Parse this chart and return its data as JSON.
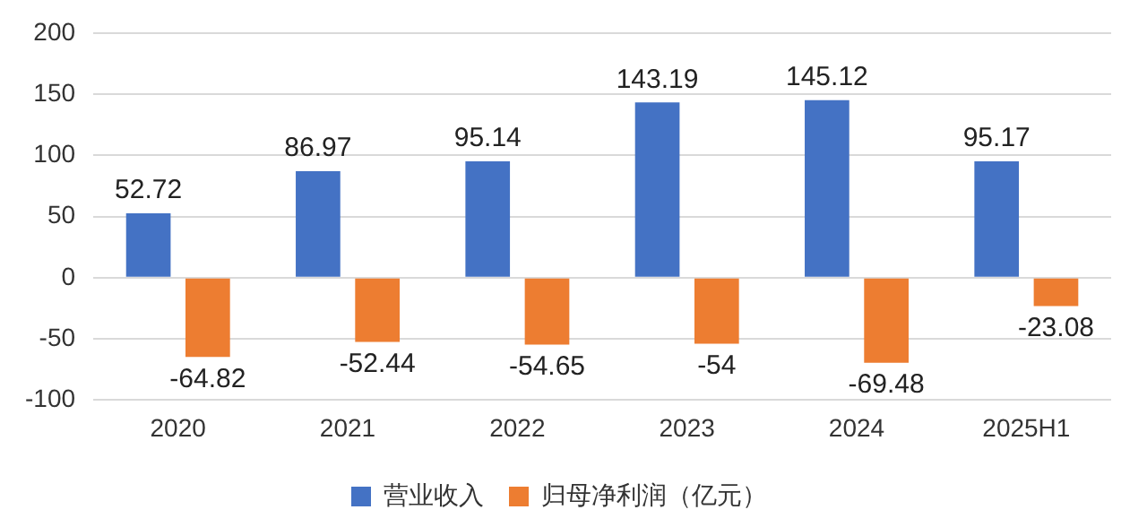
{
  "chart_data": {
    "type": "bar",
    "categories": [
      "2020",
      "2021",
      "2022",
      "2023",
      "2024",
      "2025H1"
    ],
    "series": [
      {
        "name": "营业收入",
        "color": "#4472c4",
        "values": [
          52.72,
          86.97,
          95.14,
          143.19,
          145.12,
          95.17
        ]
      },
      {
        "name": "归母净利润（亿元）",
        "color": "#ed7d31",
        "values": [
          -64.82,
          -52.44,
          -54.65,
          -54,
          -69.48,
          -23.08
        ]
      }
    ],
    "ylim": [
      -100,
      200
    ],
    "yticks": [
      -100,
      -50,
      0,
      50,
      100,
      150,
      200
    ],
    "grid": "y",
    "legend": "bottom",
    "data_labels": true
  }
}
